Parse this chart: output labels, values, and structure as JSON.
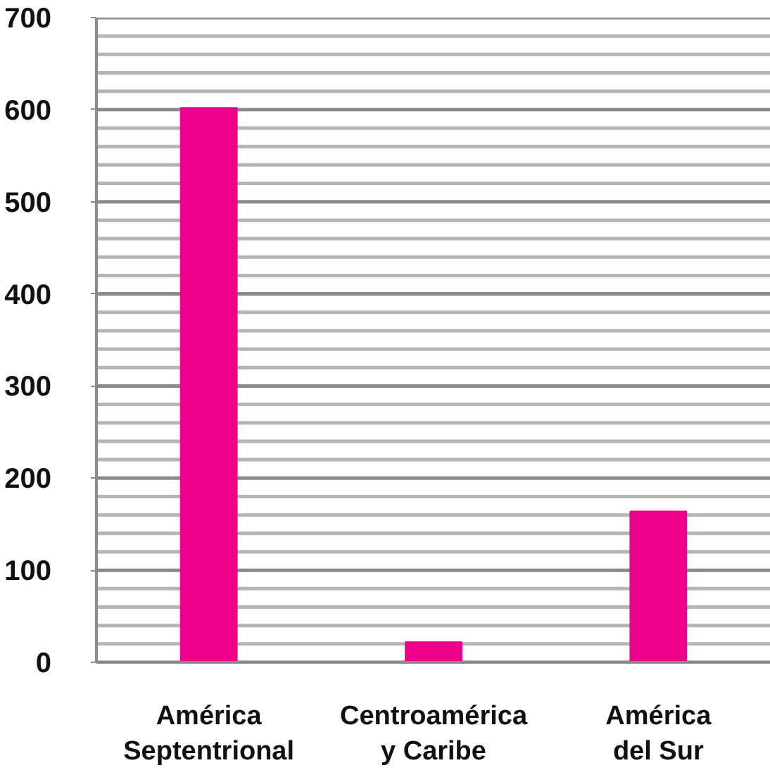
{
  "chart_data": {
    "type": "bar",
    "categories": [
      "América\nSeptentrional",
      "Centroamérica\ny Caribe",
      "América\ndel Sur"
    ],
    "values": [
      602,
      22,
      164
    ],
    "color": "#ec008c",
    "ylim": [
      0,
      700
    ],
    "yticks": [
      0,
      {
        "value": 20,
        "label": null
      },
      {
        "value": 40,
        "label": null
      },
      {
        "value": 60,
        "label": null
      },
      {
        "value": 80,
        "label": null
      },
      100,
      {
        "value": 120,
        "label": null
      },
      {
        "value": 140,
        "label": null
      },
      {
        "value": 160,
        "label": null
      },
      {
        "value": 180,
        "label": null
      },
      200,
      {
        "value": 220,
        "label": null
      },
      {
        "value": 240,
        "label": null
      },
      {
        "value": 260,
        "label": null
      },
      {
        "value": 280,
        "label": null
      },
      300,
      {
        "value": 320,
        "label": null
      },
      {
        "value": 340,
        "label": null
      },
      {
        "value": 360,
        "label": null
      },
      {
        "value": 380,
        "label": null
      },
      400,
      {
        "value": 420,
        "label": null
      },
      {
        "value": 440,
        "label": null
      },
      {
        "value": 460,
        "label": null
      },
      {
        "value": 480,
        "label": null
      },
      500,
      {
        "value": 520,
        "label": null
      },
      {
        "value": 540,
        "label": null
      },
      {
        "value": 560,
        "label": null
      },
      {
        "value": 580,
        "label": null
      },
      600,
      {
        "value": 620,
        "label": null
      },
      {
        "value": 640,
        "label": null
      },
      {
        "value": 660,
        "label": null
      },
      {
        "value": 680,
        "label": null
      },
      700
    ],
    "grid": "y"
  }
}
